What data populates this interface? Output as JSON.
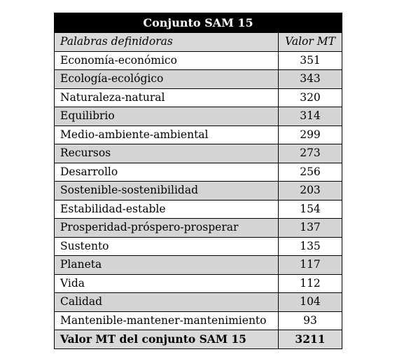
{
  "table": {
    "title": "Conjunto SAM 15",
    "headers": {
      "words": "Palabras definidoras",
      "value": "Valor MT"
    },
    "rows": [
      {
        "word": "Economía-económico",
        "value": "351"
      },
      {
        "word": "Ecología-ecológico",
        "value": "343"
      },
      {
        "word": "Naturaleza-natural",
        "value": "320"
      },
      {
        "word": "Equilibrio",
        "value": "314"
      },
      {
        "word": "Medio-ambiente-ambiental",
        "value": "299"
      },
      {
        "word": "Recursos",
        "value": "273"
      },
      {
        "word": "Desarrollo",
        "value": "256"
      },
      {
        "word": "Sostenible-sostenibilidad",
        "value": "203"
      },
      {
        "word": "Estabilidad-estable",
        "value": "154"
      },
      {
        "word": "Prosperidad-próspero-prosperar",
        "value": "137"
      },
      {
        "word": "Sustento",
        "value": "135"
      },
      {
        "word": "Planeta",
        "value": "117"
      },
      {
        "word": "Vida",
        "value": "112"
      },
      {
        "word": "Calidad",
        "value": "104"
      },
      {
        "word": "Mantenible-mantener-mantenimiento",
        "value": "93"
      }
    ],
    "total": {
      "label": "Valor MT del conjunto SAM 15",
      "value": "3211"
    },
    "colors": {
      "title_bg": "#000000",
      "title_fg": "#ffffff",
      "shaded_row": "#d4d4d4",
      "plain_row": "#ffffff"
    }
  }
}
